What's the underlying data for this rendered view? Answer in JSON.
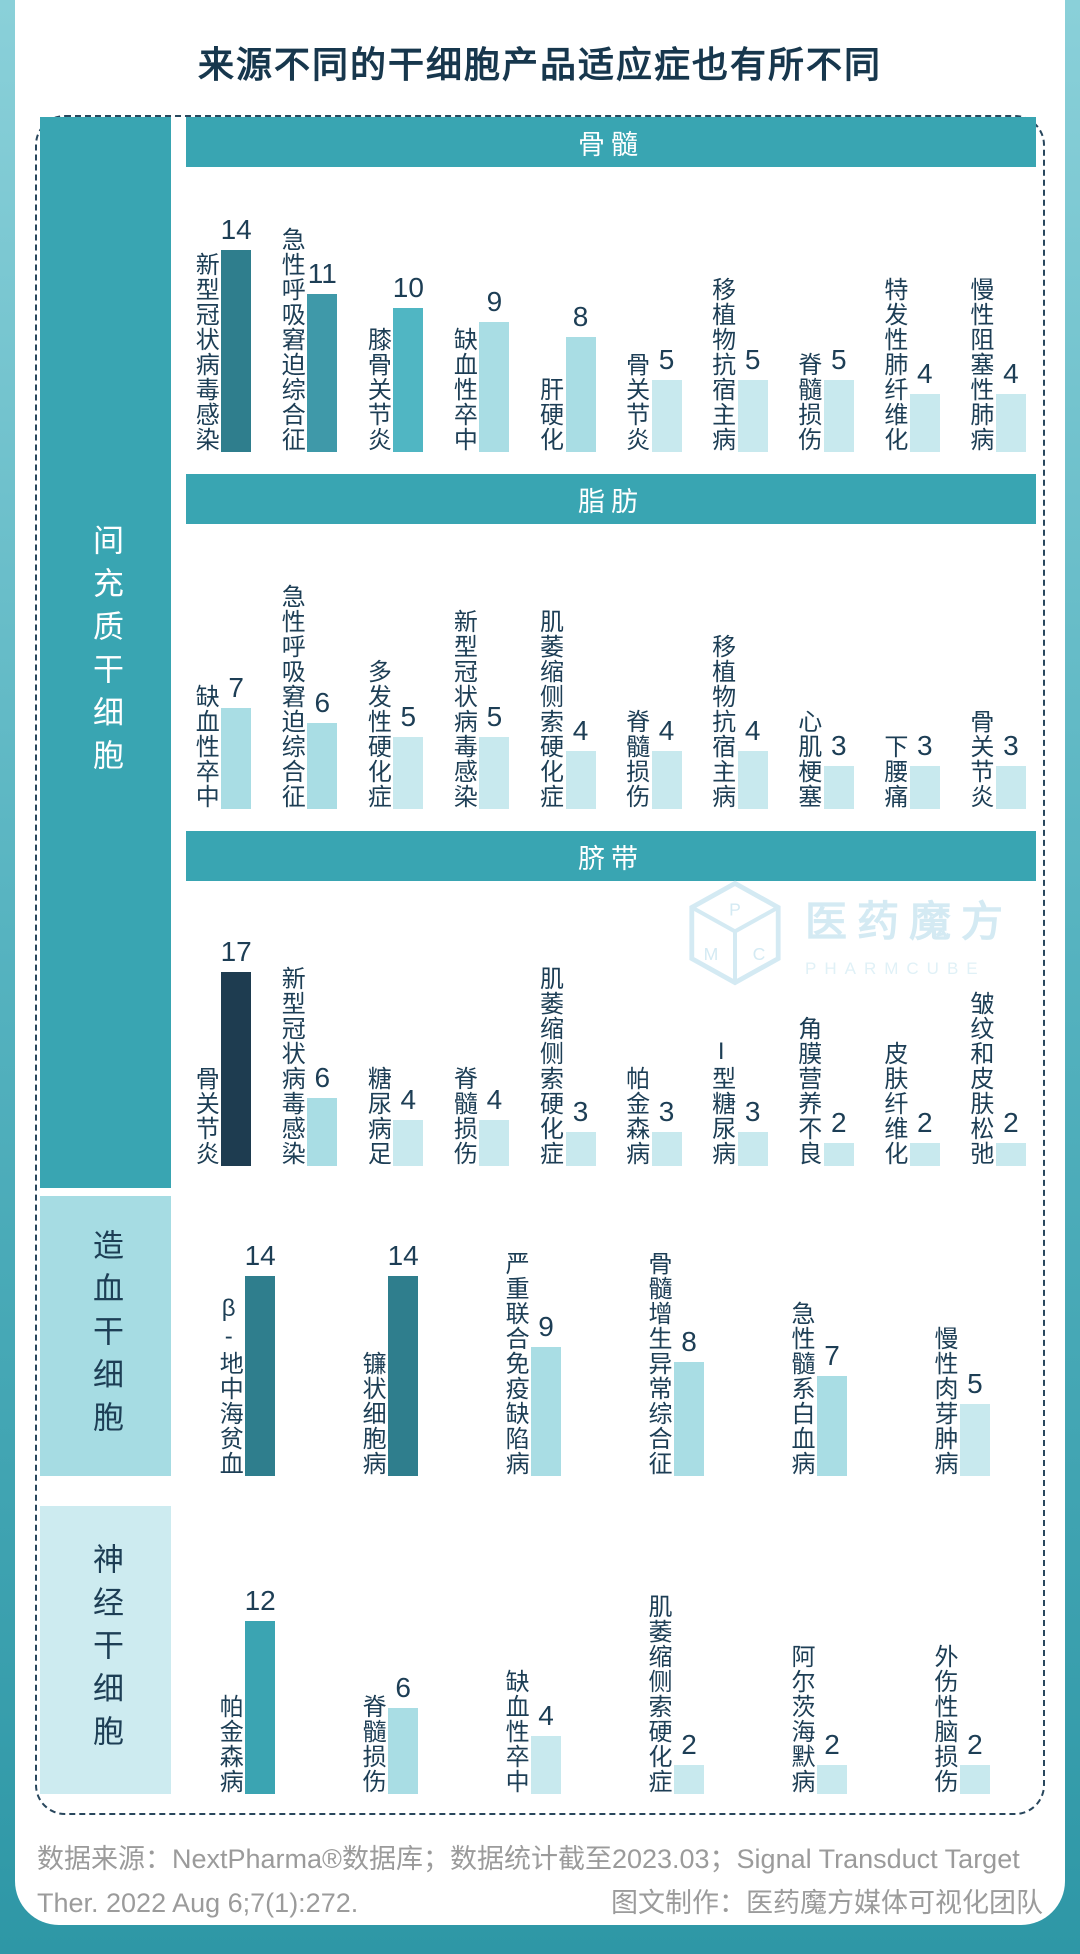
{
  "title": "来源不同的干细胞产品适应症也有所不同",
  "colors": {
    "teal_main": "#39a5b2",
    "navy_text": "#1d3e55",
    "bar_17": "#1e3c50",
    "bar_14": "#2f7e8d",
    "bar_12": "#3ba4b2",
    "bar_11": "#3f99a9",
    "bar_10": "#50b6c3",
    "bar_mid": "#a9dde4",
    "bar_light": "#c8e9ee",
    "sidebar_hematopoietic": "#a6dce3",
    "sidebar_neural": "#cdebf0",
    "edge_gradient_top": "#8ad0d9",
    "edge_gradient_bottom": "#2e97a6",
    "footer_gray": "#9b9b9b"
  },
  "sidebars": [
    {
      "label": "间充质干细胞",
      "charts": [
        0,
        1,
        2
      ],
      "bg": "#39a5b2",
      "fg": "#ffffff"
    },
    {
      "label": "造血干细胞",
      "charts": [
        3
      ],
      "bg": "#a6dce3",
      "fg": "#1d3e55"
    },
    {
      "label": "神经干细胞",
      "charts": [
        4
      ],
      "bg": "#cdebf0",
      "fg": "#1d3e55"
    }
  ],
  "chart_data": [
    {
      "type": "bar",
      "stem_cell_type": "间充质干细胞",
      "tissue_source": "骨髓",
      "categories": [
        "新型冠状病毒感染",
        "急性呼吸窘迫综合征",
        "膝骨关节炎",
        "缺血性卒中",
        "肝硬化",
        "骨关节炎",
        "移植物抗宿主病",
        "脊髓损伤",
        "特发性肺纤维化",
        "慢性阻塞性肺病"
      ],
      "values": [
        14,
        11,
        10,
        9,
        8,
        5,
        5,
        5,
        4,
        4
      ],
      "value_labels": true,
      "grid": false,
      "legend": false
    },
    {
      "type": "bar",
      "stem_cell_type": "间充质干细胞",
      "tissue_source": "脂肪",
      "categories": [
        "缺血性卒中",
        "急性呼吸窘迫综合征",
        "多发性硬化症",
        "新型冠状病毒感染",
        "肌萎缩侧索硬化症",
        "脊髓损伤",
        "移植物抗宿主病",
        "心肌梗塞",
        "下腰痛",
        "骨关节炎"
      ],
      "values": [
        7,
        6,
        5,
        5,
        4,
        4,
        4,
        3,
        3,
        3
      ],
      "value_labels": true,
      "grid": false,
      "legend": false
    },
    {
      "type": "bar",
      "stem_cell_type": "间充质干细胞",
      "tissue_source": "脐带",
      "categories": [
        "骨关节炎",
        "新型冠状病毒感染",
        "糖尿病足",
        "脊髓损伤",
        "肌萎缩侧索硬化症",
        "帕金森病",
        "I型糖尿病",
        "角膜营养不良",
        "皮肤纤维化",
        "皱纹和皮肤松弛"
      ],
      "values": [
        17,
        6,
        4,
        4,
        3,
        3,
        3,
        2,
        2,
        2
      ],
      "value_labels": true,
      "grid": false,
      "legend": false
    },
    {
      "type": "bar",
      "stem_cell_type": "造血干细胞",
      "tissue_source": null,
      "categories": [
        "β-地中海贫血",
        "镰状细胞病",
        "严重联合免疫缺陷病",
        "骨髓增生异常综合征",
        "急性髓系白血病",
        "慢性肉芽肿病"
      ],
      "values": [
        14,
        14,
        9,
        8,
        7,
        5
      ],
      "value_labels": true,
      "grid": false,
      "legend": false
    },
    {
      "type": "bar",
      "stem_cell_type": "神经干细胞",
      "tissue_source": null,
      "categories": [
        "帕金森病",
        "脊髓损伤",
        "缺血性卒中",
        "肌萎缩侧索硬化症",
        "阿尔茨海默病",
        "外伤性脑损伤"
      ],
      "values": [
        12,
        6,
        4,
        2,
        2,
        2
      ],
      "value_labels": true,
      "grid": false,
      "legend": false
    }
  ],
  "watermark": {
    "brand_cn": "医药魔方",
    "brand_en": "PHARMCUBE",
    "cube_letters": [
      "P",
      "M",
      "C"
    ]
  },
  "footer": {
    "line1": "数据来源：NextPharma®数据库；数据统计截至2023.03；Signal Transduct Target",
    "line2_left": "Ther. 2022 Aug 6;7(1):272.",
    "line2_right": "图文制作：医药魔方媒体可视化团队"
  }
}
